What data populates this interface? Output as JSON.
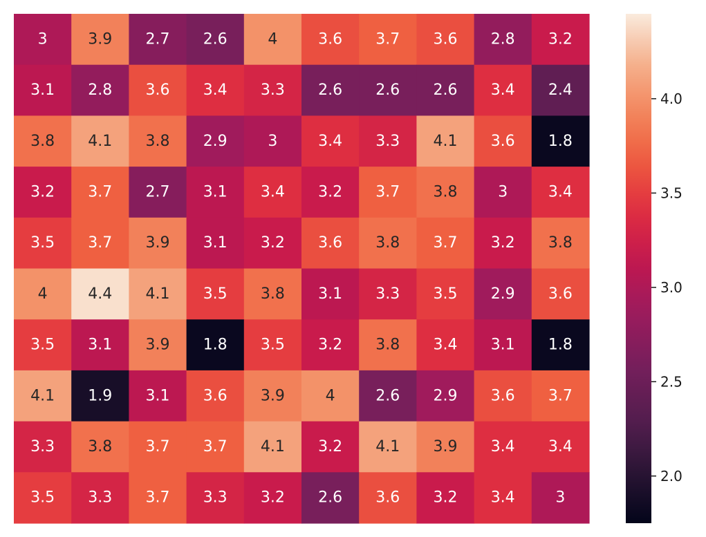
{
  "chart_data": {
    "type": "heatmap",
    "title": "",
    "xlabel": "",
    "ylabel": "",
    "rows": 10,
    "cols": 10,
    "values": [
      [
        3,
        3.9,
        2.7,
        2.6,
        4,
        3.6,
        3.7,
        3.6,
        2.8,
        3.2
      ],
      [
        3.1,
        2.8,
        3.6,
        3.4,
        3.3,
        2.6,
        2.6,
        2.6,
        3.4,
        2.4
      ],
      [
        3.8,
        4.1,
        3.8,
        2.9,
        3,
        3.4,
        3.3,
        4.1,
        3.6,
        1.8
      ],
      [
        3.2,
        3.7,
        2.7,
        3.1,
        3.4,
        3.2,
        3.7,
        3.8,
        3,
        3.4
      ],
      [
        3.5,
        3.7,
        3.9,
        3.1,
        3.2,
        3.6,
        3.8,
        3.7,
        3.2,
        3.8
      ],
      [
        4,
        4.4,
        4.1,
        3.5,
        3.8,
        3.1,
        3.3,
        3.5,
        2.9,
        3.6
      ],
      [
        3.5,
        3.1,
        3.9,
        1.8,
        3.5,
        3.2,
        3.8,
        3.4,
        3.1,
        1.8
      ],
      [
        4.1,
        1.9,
        3.1,
        3.6,
        3.9,
        4,
        2.6,
        2.9,
        3.6,
        3.7
      ],
      [
        3.3,
        3.8,
        3.7,
        3.7,
        4.1,
        3.2,
        4.1,
        3.9,
        3.4,
        3.4
      ],
      [
        3.5,
        3.3,
        3.7,
        3.3,
        3.2,
        2.6,
        3.6,
        3.2,
        3.4,
        3
      ]
    ],
    "colormap": "rocket",
    "vmin": 1.75,
    "vmax": 4.45,
    "colorbar": {
      "position": "right",
      "ticks": [
        2.0,
        2.5,
        3.0,
        3.5,
        4.0
      ],
      "tick_labels": [
        "2.0",
        "2.5",
        "3.0",
        "3.5",
        "4.0"
      ]
    },
    "annotation_dark_text_color": "#262626",
    "annotation_light_text_color": "#ffffff"
  }
}
